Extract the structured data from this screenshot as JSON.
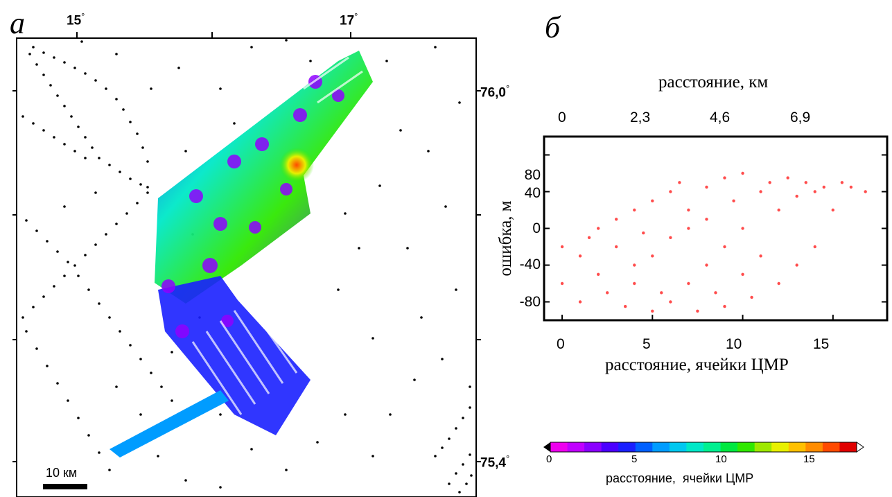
{
  "panel_a": {
    "letter": "a",
    "lon_labels": [
      {
        "text": "15",
        "deg": "°"
      },
      {
        "text": "17",
        "deg": "°"
      }
    ],
    "lat_labels": [
      {
        "text": "76,0",
        "deg": "°"
      },
      {
        "text": "75,4",
        "deg": "°"
      }
    ],
    "scale_bar_label": "10 км"
  },
  "panel_b": {
    "letter": "б",
    "top_axis_title": "расстояние, км",
    "top_ticks": [
      "0",
      "2,3",
      "4,6",
      "6,9"
    ],
    "y_title": "ошибка, м",
    "y_ticks": [
      "80",
      "40",
      "0",
      "-40",
      "-80"
    ],
    "x_ticks": [
      "0",
      "5",
      "10",
      "15"
    ],
    "x_title": "расстояние, ячейки ЦМР"
  },
  "colorbar": {
    "ticks": [
      "0",
      "5",
      "10",
      "15"
    ],
    "label": "расстояние,  ячейки ЦМР",
    "colors": [
      "#ee00ee",
      "#c000ff",
      "#8a00ff",
      "#4b00ff",
      "#1a20ff",
      "#0060ff",
      "#009cff",
      "#00c8f0",
      "#00e8c8",
      "#00f090",
      "#00e840",
      "#30e800",
      "#9ee800",
      "#e8f000",
      "#ffc000",
      "#ff8c00",
      "#ff4a00",
      "#e00000"
    ],
    "range": [
      0,
      18
    ]
  },
  "chart_data": {
    "type": "scatter",
    "title": "",
    "xlabel": "расстояние, ячейки ЦМР",
    "ylabel": "ошибка, м",
    "x2label": "расстояние, км",
    "xlim": [
      -1,
      18
    ],
    "ylim": [
      -100,
      100
    ],
    "x2_ticks": [
      "0",
      "2,3",
      "4,6",
      "6,9"
    ],
    "series": [
      {
        "color": "#ff0000",
        "x": [
          0,
          0,
          1,
          1,
          1.5,
          2,
          2,
          2.5,
          3,
          3,
          3.5,
          4,
          4,
          4,
          4.5,
          5,
          5,
          5,
          5.5,
          6,
          6,
          6,
          6.5,
          7,
          7,
          7,
          7.5,
          8,
          8,
          8,
          8.5,
          9,
          9,
          9,
          9.5,
          10,
          10,
          10,
          10.5,
          11,
          11,
          11.5,
          12,
          12,
          12.5,
          13,
          13,
          13.5,
          14,
          14,
          14.5,
          15,
          15.5,
          16,
          16.8
        ],
        "y": [
          -20,
          -60,
          -30,
          -80,
          -10,
          -50,
          0,
          -70,
          -20,
          10,
          -85,
          -40,
          20,
          -60,
          -5,
          -90,
          30,
          -30,
          -70,
          40,
          -10,
          -80,
          50,
          0,
          -60,
          20,
          -90,
          45,
          -40,
          10,
          -70,
          55,
          -20,
          -85,
          30,
          -50,
          60,
          0,
          -75,
          40,
          -30,
          50,
          -60,
          20,
          55,
          -40,
          35,
          50,
          -20,
          40,
          45,
          20,
          50,
          45,
          40
        ]
      }
    ]
  }
}
